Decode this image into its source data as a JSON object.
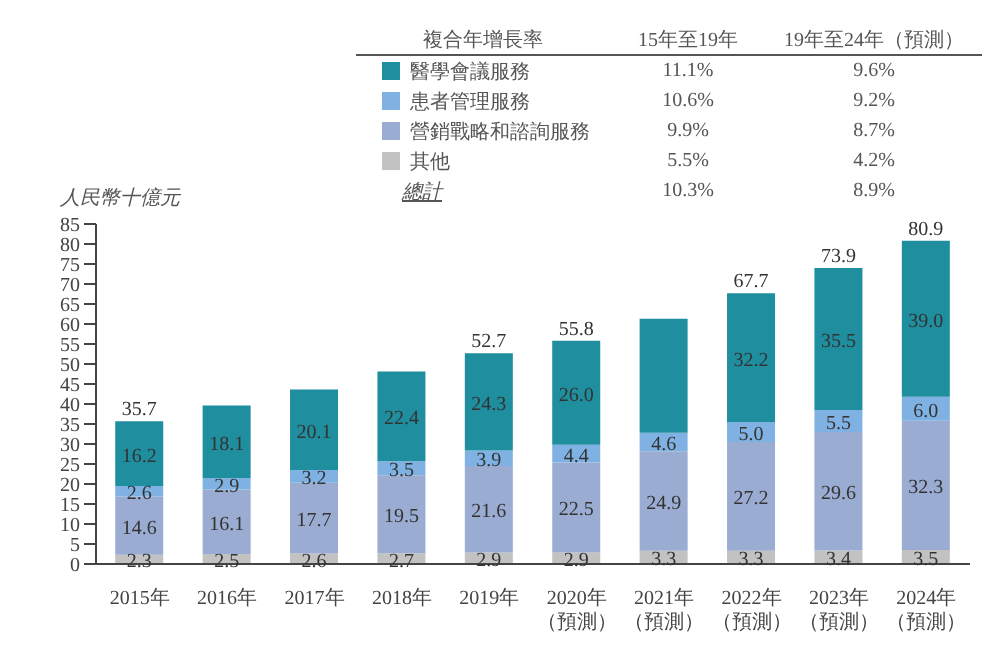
{
  "chart_data": {
    "type": "bar",
    "stacked": true,
    "ylabel": "人民幣十億元",
    "legend": "top",
    "legend_title": "複合年增長率",
    "categories": [
      "2015年",
      "2016年",
      "2017年",
      "2018年",
      "2019年",
      "2020年（預測）",
      "2021年（預測）",
      "2022年（預測）",
      "2023年（預測）",
      "2024年（預測）"
    ],
    "series": [
      {
        "name": "其他",
        "color": "#c2c2c2",
        "values": [
          2.3,
          2.5,
          2.6,
          2.7,
          2.9,
          2.9,
          3.3,
          3.3,
          3.4,
          3.5
        ],
        "value_labels": [
          "2.3",
          "2.5",
          "2.6",
          "2.7",
          "2.9",
          "2.9",
          "3.3",
          "3.3",
          "3.4",
          "3.5"
        ]
      },
      {
        "name": "營銷戰略和諮詢服務",
        "color": "#9aacd2",
        "values": [
          14.6,
          16.1,
          17.7,
          19.5,
          21.6,
          22.5,
          24.9,
          27.2,
          29.6,
          32.3
        ],
        "value_labels": [
          "14.6",
          "16.1",
          "17.7",
          "19.5",
          "21.6",
          "22.5",
          "24.9",
          "27.2",
          "29.6",
          "32.3"
        ]
      },
      {
        "name": "患者管理服務",
        "color": "#7fb2e2",
        "values": [
          2.6,
          2.9,
          3.2,
          3.5,
          3.9,
          4.4,
          4.6,
          5.0,
          5.5,
          6.0
        ],
        "value_labels": [
          "2.6",
          "2.9",
          "3.2",
          "3.5",
          "3.9",
          "4.4",
          "4.6",
          "5.0",
          "5.5",
          "6.0"
        ]
      },
      {
        "name": "醫學會議服務",
        "color": "#1f8e9e",
        "values": [
          16.2,
          18.1,
          20.1,
          22.4,
          24.3,
          26.0,
          28.5,
          32.2,
          35.5,
          39.0
        ],
        "value_labels": [
          "16.2",
          "18.1",
          "20.1",
          "22.4",
          "24.3",
          "26.0",
          null,
          "32.2",
          "35.5",
          "39.0"
        ]
      }
    ],
    "totals": [
      "35.7",
      null,
      null,
      null,
      "52.7",
      "55.8",
      null,
      "67.7",
      "73.9",
      "80.9"
    ],
    "ylim": [
      0,
      85
    ],
    "yticks": [
      0,
      5,
      10,
      15,
      20,
      25,
      30,
      35,
      40,
      45,
      50,
      55,
      60,
      65,
      70,
      75,
      80,
      85
    ],
    "annotations": [
      "15年至19年",
      "19年至24年（預測）",
      "11.1%",
      "9.6%",
      "10.6%",
      "9.2%",
      "9.9%",
      "8.7%",
      "5.5%",
      "4.2%",
      "總計",
      "10.3%",
      "8.9%"
    ]
  }
}
